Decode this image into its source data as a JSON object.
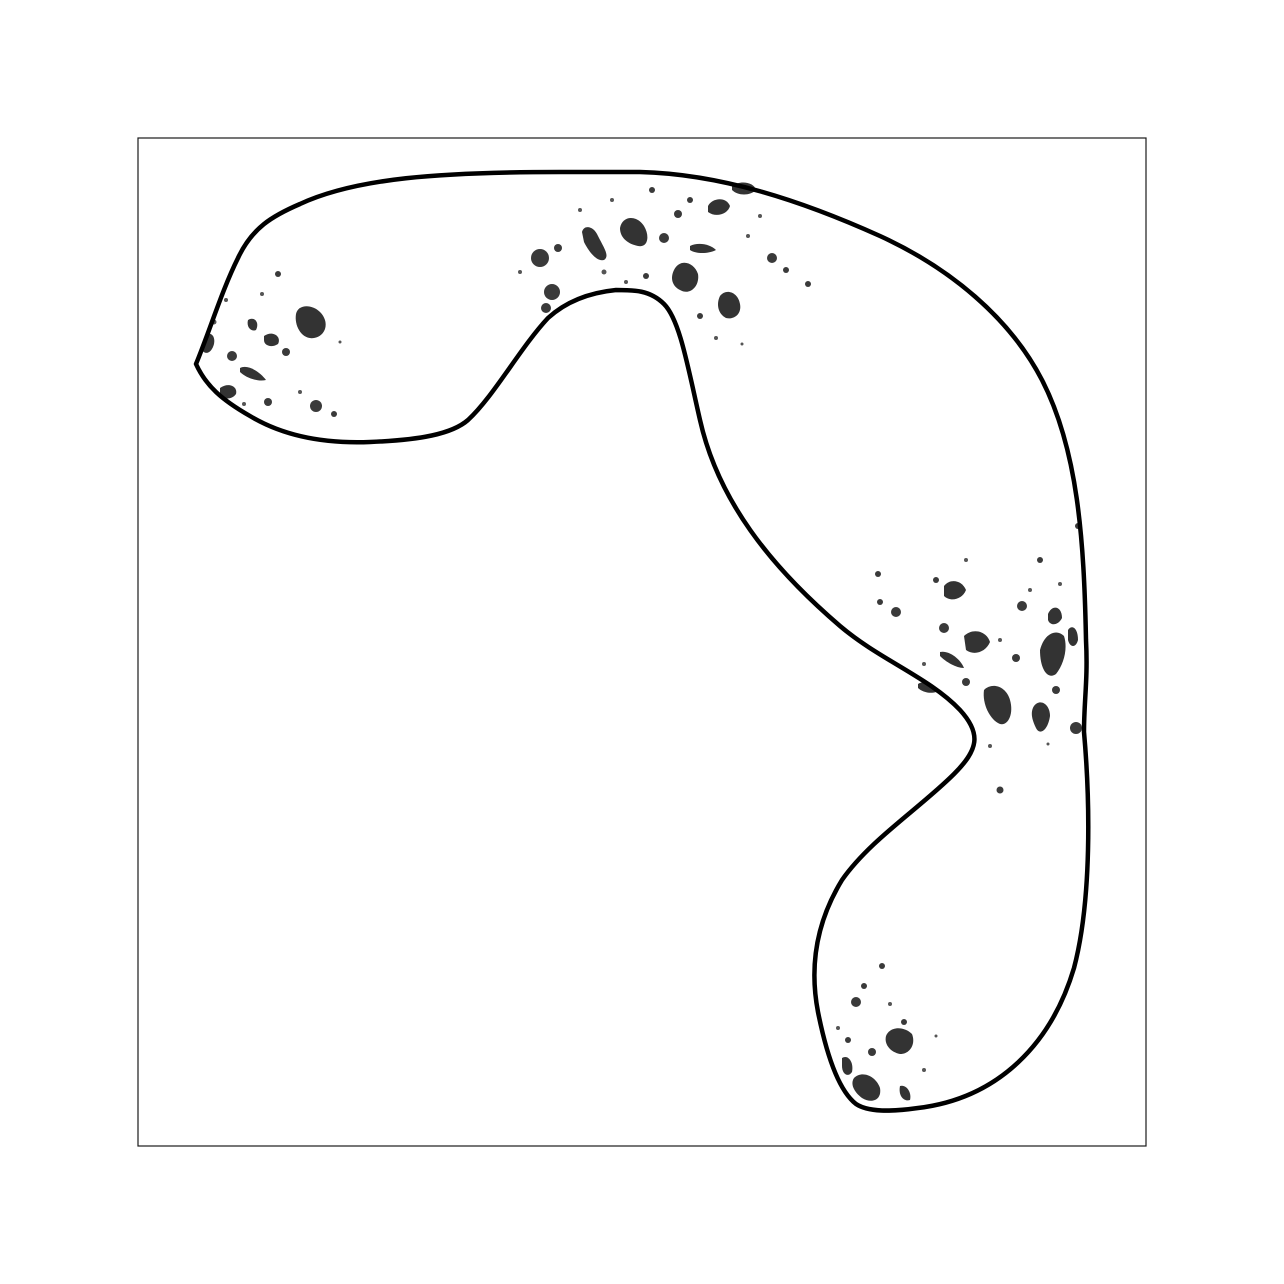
{
  "colors": {
    "background": "#ffffff",
    "frame": "#1a1a1a",
    "outline": "#000000",
    "splatter": "#333333"
  },
  "figure": {
    "frame_label": "",
    "shape": "curled-band",
    "splatter_regions": [
      "upper-left-tip",
      "upper-arch",
      "right-side",
      "lower-tip"
    ]
  }
}
